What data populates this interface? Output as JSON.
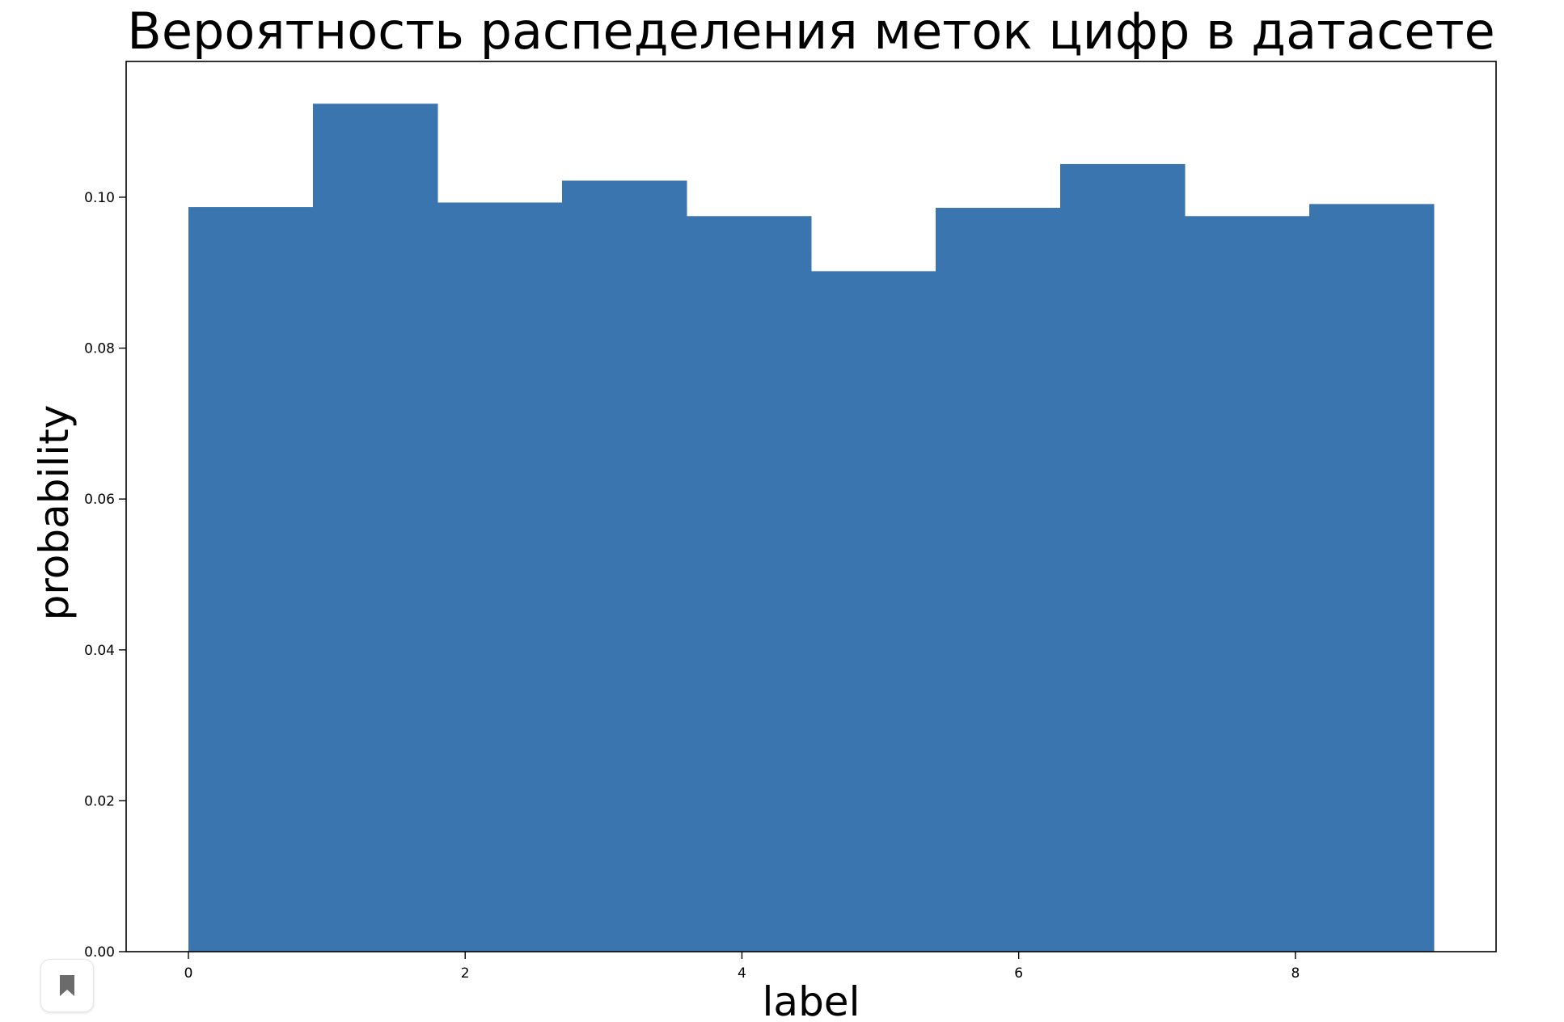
{
  "chart_data": {
    "type": "bar",
    "title": "Вероятность распеделения меток цифр в датасете",
    "xlabel": "label",
    "ylabel": "probability",
    "bin_edges": [
      0,
      0.9,
      1.8,
      2.7,
      3.6,
      4.5,
      5.4,
      6.3,
      7.2,
      8.1,
      9.0
    ],
    "values": [
      0.0987,
      0.1124,
      0.0993,
      0.1022,
      0.0975,
      0.0902,
      0.0986,
      0.1044,
      0.0975,
      0.0991
    ],
    "xlim": [
      -0.45,
      9.45
    ],
    "ylim": [
      0,
      0.118
    ],
    "xticks": [
      0,
      2,
      4,
      6,
      8
    ],
    "xtick_labels": [
      "0",
      "2",
      "4",
      "6",
      "8"
    ],
    "yticks": [
      0,
      0.02,
      0.04,
      0.06,
      0.08,
      0.1
    ],
    "ytick_labels": [
      "0.00",
      "0.02",
      "0.04",
      "0.06",
      "0.08",
      "0.10"
    ],
    "color": "#3a75af",
    "grid": false,
    "legend": "none"
  },
  "ui": {
    "bookmark_icon": "bookmark-icon",
    "bookmark_color": "#6b6b6b"
  }
}
